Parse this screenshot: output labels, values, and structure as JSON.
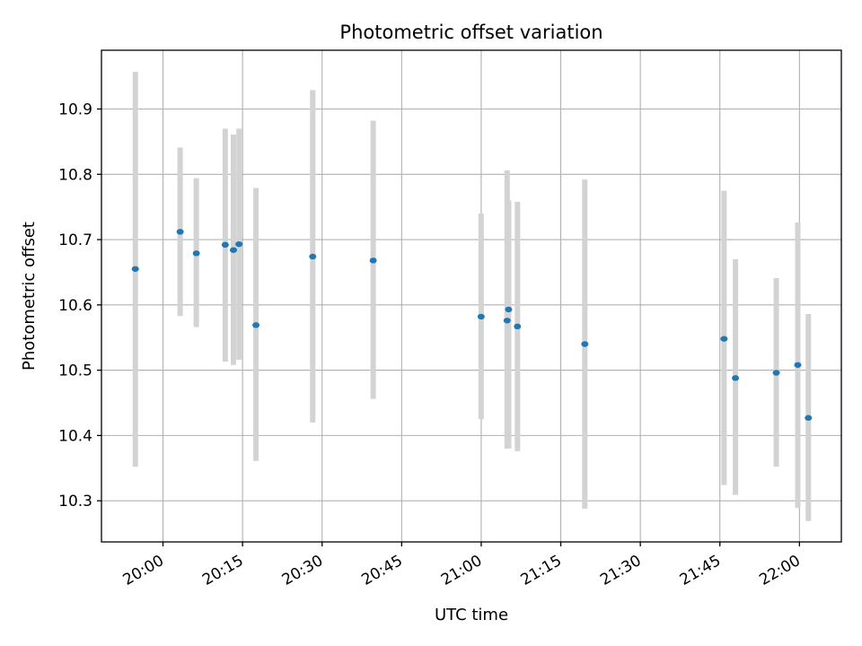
{
  "chart_data": {
    "type": "scatter",
    "title": "Photometric offset variation",
    "xlabel": "UTC time",
    "ylabel": "Photometric offset",
    "xlim": [
      "19:48:24",
      "22:07:54"
    ],
    "ylim": [
      10.237,
      10.99
    ],
    "grid": true,
    "x_ticks": [
      "20:00",
      "20:15",
      "20:30",
      "20:45",
      "21:00",
      "21:15",
      "21:30",
      "21:45",
      "22:00"
    ],
    "y_ticks": [
      10.3,
      10.4,
      10.5,
      10.6,
      10.7,
      10.8,
      10.9
    ],
    "y_tick_labels": [
      "10.3",
      "10.4",
      "10.5",
      "10.6",
      "10.7",
      "10.8",
      "10.9"
    ],
    "marker_color": "#1f77b4",
    "errorbar_color": "#d3d3d3",
    "series": [
      {
        "points": [
          {
            "x": "19:54:47",
            "y": 10.655,
            "err_low": 10.352,
            "err_high": 10.957
          },
          {
            "x": "20:03:14",
            "y": 10.712,
            "err_low": 10.583,
            "err_high": 10.841
          },
          {
            "x": "20:06:17",
            "y": 10.679,
            "err_low": 10.566,
            "err_high": 10.794
          },
          {
            "x": "20:11:44",
            "y": 10.692,
            "err_low": 10.513,
            "err_high": 10.87
          },
          {
            "x": "20:13:17",
            "y": 10.684,
            "err_low": 10.508,
            "err_high": 10.861
          },
          {
            "x": "20:14:20",
            "y": 10.693,
            "err_low": 10.516,
            "err_high": 10.87
          },
          {
            "x": "20:17:32",
            "y": 10.569,
            "err_low": 10.361,
            "err_high": 10.779
          },
          {
            "x": "20:28:14",
            "y": 10.674,
            "err_low": 10.42,
            "err_high": 10.929
          },
          {
            "x": "20:39:38",
            "y": 10.668,
            "err_low": 10.456,
            "err_high": 10.882
          },
          {
            "x": "20:59:59",
            "y": 10.582,
            "err_low": 10.425,
            "err_high": 10.74
          },
          {
            "x": "21:04:53",
            "y": 10.576,
            "err_low": 10.38,
            "err_high": 10.806
          },
          {
            "x": "21:05:10",
            "y": 10.593,
            "err_low": 10.38,
            "err_high": 10.76
          },
          {
            "x": "21:06:50",
            "y": 10.567,
            "err_low": 10.376,
            "err_high": 10.758
          },
          {
            "x": "21:19:32",
            "y": 10.54,
            "err_low": 10.288,
            "err_high": 10.792
          },
          {
            "x": "21:45:47",
            "y": 10.548,
            "err_low": 10.324,
            "err_high": 10.775
          },
          {
            "x": "21:47:56",
            "y": 10.488,
            "err_low": 10.309,
            "err_high": 10.67
          },
          {
            "x": "21:55:38",
            "y": 10.496,
            "err_low": 10.352,
            "err_high": 10.641
          },
          {
            "x": "21:59:41",
            "y": 10.508,
            "err_low": 10.289,
            "err_high": 10.726
          },
          {
            "x": "22:01:41",
            "y": 10.427,
            "err_low": 10.269,
            "err_high": 10.586
          }
        ]
      }
    ]
  }
}
